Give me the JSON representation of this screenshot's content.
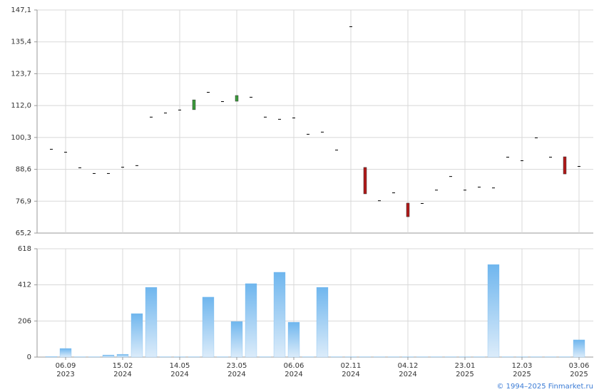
{
  "chart_data": [
    {
      "type": "candlestick",
      "open": [
        96.1,
        95.0,
        89.3,
        87.2,
        87.2,
        89.5,
        90.1,
        107.9,
        109.4,
        110.5,
        110.5,
        117.0,
        113.6,
        113.6,
        115.2,
        107.9,
        107.1,
        107.6,
        101.6,
        102.4,
        95.8,
        141.1,
        89.3,
        77.2,
        80.1,
        76.2,
        76.2,
        81.1,
        86.1,
        81.1,
        82.2,
        81.9,
        93.2,
        91.9,
        100.3,
        93.2,
        93.2,
        89.8
      ],
      "close": [
        96.1,
        95.0,
        89.3,
        87.2,
        87.2,
        89.5,
        90.1,
        107.9,
        109.4,
        110.5,
        114.1,
        117.0,
        113.6,
        115.7,
        115.2,
        107.9,
        107.1,
        107.6,
        101.6,
        102.4,
        95.8,
        141.1,
        79.6,
        77.2,
        80.1,
        71.2,
        76.2,
        81.1,
        86.1,
        81.1,
        82.2,
        81.9,
        93.2,
        91.9,
        100.3,
        93.2,
        86.9,
        89.8
      ],
      "up_color": "#3a9a3a",
      "down_color": "#b01818",
      "flat_color": "#000000",
      "ylim": [
        65.2,
        147.1
      ],
      "yticks": [
        {
          "value": 65.2,
          "label": "65,2"
        },
        {
          "value": 76.9,
          "label": "76,9"
        },
        {
          "value": 88.6,
          "label": "88,6"
        },
        {
          "value": 100.3,
          "label": "100,3"
        },
        {
          "value": 112.0,
          "label": "112,0"
        },
        {
          "value": 123.7,
          "label": "123,7"
        },
        {
          "value": 135.4,
          "label": "135,4"
        },
        {
          "value": 147.1,
          "label": "147,1"
        }
      ],
      "grid": true
    },
    {
      "type": "bar",
      "categories": [
        null,
        [
          "06.09",
          "2023"
        ],
        null,
        null,
        null,
        [
          "15.02",
          "2024"
        ],
        null,
        null,
        null,
        [
          "14.05",
          "2024"
        ],
        null,
        null,
        null,
        [
          "23.05",
          "2024"
        ],
        null,
        null,
        null,
        [
          "06.06",
          "2024"
        ],
        null,
        null,
        null,
        [
          "02.11",
          "2024"
        ],
        null,
        null,
        null,
        [
          "04.12",
          "2024"
        ],
        null,
        null,
        null,
        [
          "23.01",
          "2025"
        ],
        null,
        null,
        null,
        [
          "12.03",
          "2025"
        ],
        null,
        null,
        null,
        [
          "03.06",
          "2025"
        ]
      ],
      "values": [
        3,
        49,
        1,
        1,
        12,
        16,
        248,
        398,
        1,
        1,
        1,
        342,
        1,
        203,
        419,
        1,
        484,
        199,
        1,
        398,
        1,
        1,
        1,
        1,
        1,
        1,
        1,
        1,
        1,
        1,
        1,
        528,
        1,
        1,
        1,
        1,
        1,
        98
      ],
      "color": "#6fb6ee",
      "ylim": [
        0,
        618
      ],
      "yticks": [
        0,
        206,
        412,
        618
      ],
      "grid": true
    }
  ],
  "footer": "© 1994–2025 Finmarket.ru"
}
